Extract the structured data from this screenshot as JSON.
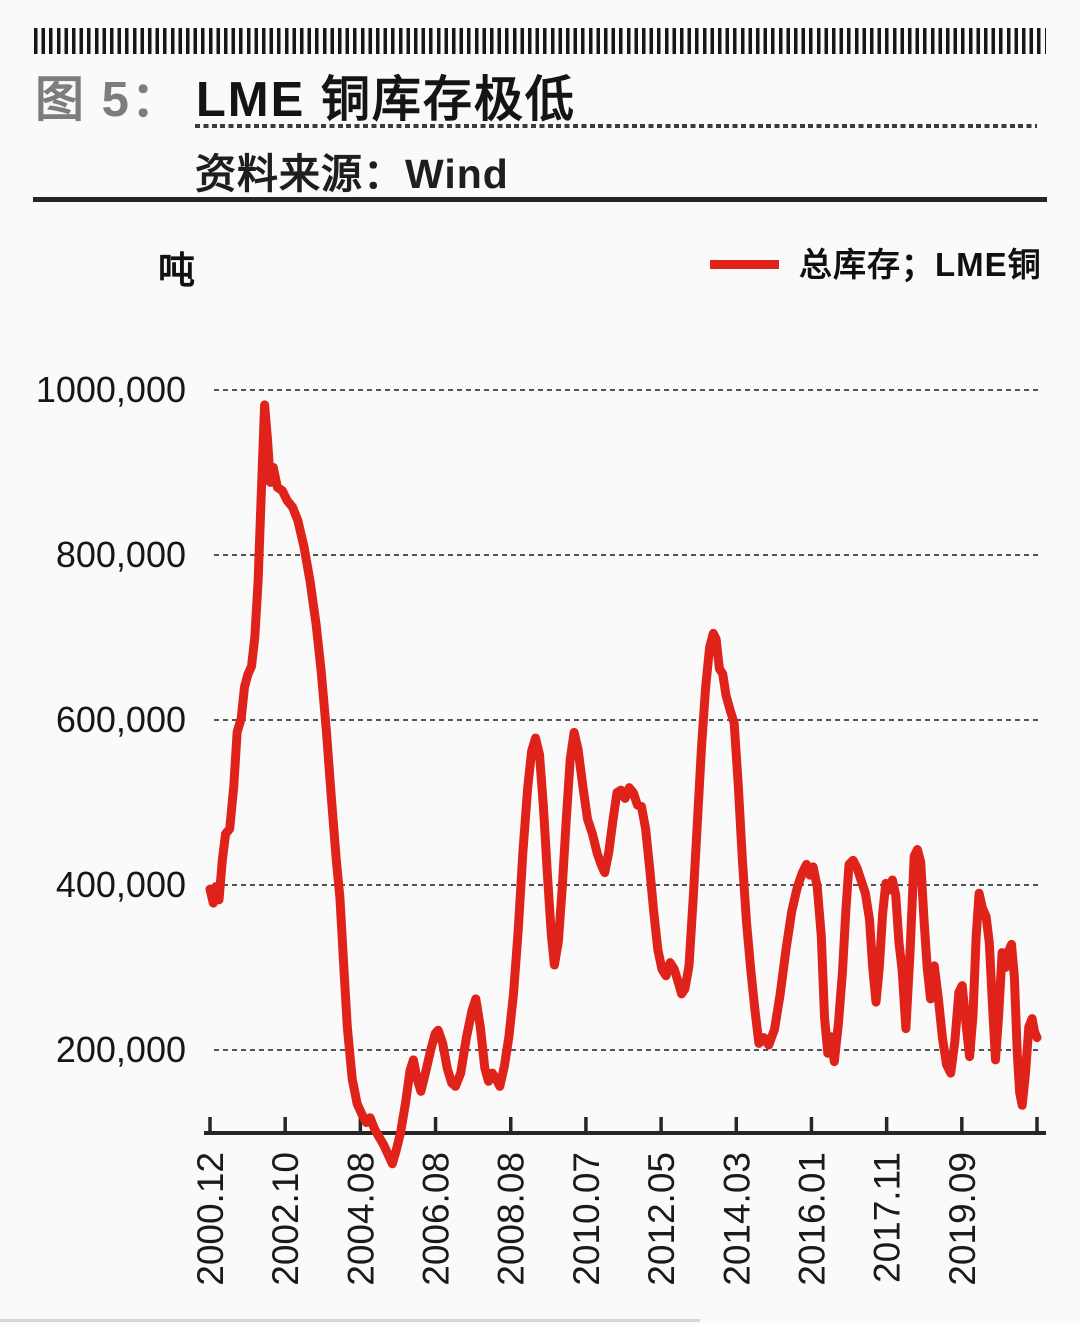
{
  "page": {
    "background": "#fafafa"
  },
  "header": {
    "figure_label": "图 5：",
    "title": "LME 铜库存极低",
    "source_label": "资料来源：Wind"
  },
  "chart": {
    "unit_label": "吨",
    "legend_color": "#e0231a",
    "line_color": "#e0231a",
    "axis_color": "#262626",
    "grid_color": "#555555",
    "text_color": "#1a1a1a"
  },
  "chart_data": {
    "type": "line",
    "title": "LME 铜库存极低",
    "xlabel": "",
    "ylabel": "吨",
    "grid": "horizontal-dashed",
    "legend_position": "top-right",
    "y_ticks": [
      {
        "label": "1000,000",
        "value": 1000000
      },
      {
        "label": "800,000",
        "value": 800000
      },
      {
        "label": "600,000",
        "value": 600000
      },
      {
        "label": "400,000",
        "value": 400000
      },
      {
        "label": "200,000",
        "value": 200000
      }
    ],
    "x_ticks": [
      {
        "label": "2000.12",
        "t": 2000.96
      },
      {
        "label": "2002.10",
        "t": 2002.79
      },
      {
        "label": "2004.08",
        "t": 2004.63
      },
      {
        "label": "2006.08",
        "t": 2006.63
      },
      {
        "label": "2008.08",
        "t": 2008.63
      },
      {
        "label": "2010.07",
        "t": 2010.54
      },
      {
        "label": "2012.05",
        "t": 2012.38
      },
      {
        "label": "2014.03",
        "t": 2014.21
      },
      {
        "label": "2016.01",
        "t": 2016.04
      },
      {
        "label": "2017.11",
        "t": 2017.88
      },
      {
        "label": "2019.09",
        "t": 2019.71
      }
    ],
    "axis_end_t": 2021.54,
    "ylim": [
      100000,
      1045000
    ],
    "series": [
      {
        "name": "总库存；LME铜",
        "color": "#e0231a",
        "points": [
          [
            2000.96,
            395000
          ],
          [
            2001.04,
            378000
          ],
          [
            2001.1,
            398000
          ],
          [
            2001.18,
            382000
          ],
          [
            2001.26,
            430000
          ],
          [
            2001.34,
            462000
          ],
          [
            2001.44,
            468000
          ],
          [
            2001.54,
            520000
          ],
          [
            2001.62,
            585000
          ],
          [
            2001.72,
            602000
          ],
          [
            2001.8,
            640000
          ],
          [
            2001.88,
            655000
          ],
          [
            2001.97,
            665000
          ],
          [
            2002.05,
            700000
          ],
          [
            2002.13,
            768000
          ],
          [
            2002.21,
            878000
          ],
          [
            2002.29,
            982000
          ],
          [
            2002.36,
            940000
          ],
          [
            2002.43,
            888000
          ],
          [
            2002.5,
            906000
          ],
          [
            2002.6,
            882000
          ],
          [
            2002.72,
            878000
          ],
          [
            2002.84,
            866000
          ],
          [
            2002.97,
            858000
          ],
          [
            2003.1,
            842000
          ],
          [
            2003.25,
            810000
          ],
          [
            2003.4,
            768000
          ],
          [
            2003.55,
            715000
          ],
          [
            2003.67,
            660000
          ],
          [
            2003.8,
            585000
          ],
          [
            2003.92,
            505000
          ],
          [
            2004.04,
            430000
          ],
          [
            2004.13,
            385000
          ],
          [
            2004.22,
            305000
          ],
          [
            2004.31,
            228000
          ],
          [
            2004.43,
            165000
          ],
          [
            2004.55,
            135000
          ],
          [
            2004.67,
            122000
          ],
          [
            2004.79,
            112000
          ],
          [
            2004.89,
            118000
          ],
          [
            2005.0,
            105000
          ],
          [
            2005.12,
            95000
          ],
          [
            2005.25,
            85000
          ],
          [
            2005.38,
            72000
          ],
          [
            2005.48,
            62000
          ],
          [
            2005.58,
            78000
          ],
          [
            2005.7,
            100000
          ],
          [
            2005.84,
            138000
          ],
          [
            2005.95,
            175000
          ],
          [
            2006.04,
            188000
          ],
          [
            2006.14,
            165000
          ],
          [
            2006.24,
            150000
          ],
          [
            2006.36,
            172000
          ],
          [
            2006.5,
            200000
          ],
          [
            2006.62,
            220000
          ],
          [
            2006.7,
            224000
          ],
          [
            2006.82,
            208000
          ],
          [
            2006.94,
            178000
          ],
          [
            2007.06,
            160000
          ],
          [
            2007.16,
            156000
          ],
          [
            2007.3,
            172000
          ],
          [
            2007.45,
            215000
          ],
          [
            2007.6,
            248000
          ],
          [
            2007.7,
            262000
          ],
          [
            2007.82,
            228000
          ],
          [
            2007.94,
            178000
          ],
          [
            2008.04,
            162000
          ],
          [
            2008.14,
            172000
          ],
          [
            2008.24,
            165000
          ],
          [
            2008.34,
            156000
          ],
          [
            2008.46,
            180000
          ],
          [
            2008.58,
            215000
          ],
          [
            2008.7,
            268000
          ],
          [
            2008.82,
            345000
          ],
          [
            2008.94,
            440000
          ],
          [
            2009.06,
            518000
          ],
          [
            2009.16,
            562000
          ],
          [
            2009.26,
            578000
          ],
          [
            2009.36,
            558000
          ],
          [
            2009.46,
            495000
          ],
          [
            2009.56,
            415000
          ],
          [
            2009.66,
            340000
          ],
          [
            2009.74,
            303000
          ],
          [
            2009.84,
            332000
          ],
          [
            2009.94,
            398000
          ],
          [
            2010.04,
            478000
          ],
          [
            2010.14,
            552000
          ],
          [
            2010.24,
            585000
          ],
          [
            2010.34,
            565000
          ],
          [
            2010.46,
            520000
          ],
          [
            2010.58,
            480000
          ],
          [
            2010.7,
            462000
          ],
          [
            2010.82,
            438000
          ],
          [
            2010.92,
            424000
          ],
          [
            2011.0,
            415000
          ],
          [
            2011.1,
            440000
          ],
          [
            2011.2,
            478000
          ],
          [
            2011.3,
            512000
          ],
          [
            2011.4,
            515000
          ],
          [
            2011.5,
            505000
          ],
          [
            2011.6,
            518000
          ],
          [
            2011.7,
            512000
          ],
          [
            2011.8,
            497000
          ],
          [
            2011.9,
            495000
          ],
          [
            2012.0,
            468000
          ],
          [
            2012.1,
            420000
          ],
          [
            2012.2,
            368000
          ],
          [
            2012.3,
            322000
          ],
          [
            2012.4,
            298000
          ],
          [
            2012.5,
            290000
          ],
          [
            2012.6,
            306000
          ],
          [
            2012.7,
            298000
          ],
          [
            2012.8,
            282000
          ],
          [
            2012.88,
            268000
          ],
          [
            2012.96,
            274000
          ],
          [
            2013.06,
            302000
          ],
          [
            2013.16,
            382000
          ],
          [
            2013.26,
            472000
          ],
          [
            2013.36,
            565000
          ],
          [
            2013.46,
            638000
          ],
          [
            2013.56,
            688000
          ],
          [
            2013.65,
            705000
          ],
          [
            2013.72,
            698000
          ],
          [
            2013.8,
            662000
          ],
          [
            2013.88,
            656000
          ],
          [
            2013.96,
            630000
          ],
          [
            2014.06,
            612000
          ],
          [
            2014.16,
            596000
          ],
          [
            2014.26,
            520000
          ],
          [
            2014.36,
            430000
          ],
          [
            2014.46,
            355000
          ],
          [
            2014.56,
            298000
          ],
          [
            2014.66,
            250000
          ],
          [
            2014.76,
            208000
          ],
          [
            2014.88,
            215000
          ],
          [
            2015.0,
            206000
          ],
          [
            2015.14,
            225000
          ],
          [
            2015.28,
            268000
          ],
          [
            2015.42,
            322000
          ],
          [
            2015.56,
            368000
          ],
          [
            2015.7,
            398000
          ],
          [
            2015.82,
            415000
          ],
          [
            2015.92,
            425000
          ],
          [
            2016.0,
            412000
          ],
          [
            2016.08,
            422000
          ],
          [
            2016.18,
            398000
          ],
          [
            2016.28,
            338000
          ],
          [
            2016.36,
            240000
          ],
          [
            2016.44,
            196000
          ],
          [
            2016.52,
            216000
          ],
          [
            2016.6,
            186000
          ],
          [
            2016.7,
            232000
          ],
          [
            2016.8,
            295000
          ],
          [
            2016.88,
            368000
          ],
          [
            2016.96,
            425000
          ],
          [
            2017.06,
            430000
          ],
          [
            2017.16,
            420000
          ],
          [
            2017.26,
            405000
          ],
          [
            2017.36,
            390000
          ],
          [
            2017.46,
            358000
          ],
          [
            2017.54,
            300000
          ],
          [
            2017.62,
            258000
          ],
          [
            2017.7,
            300000
          ],
          [
            2017.78,
            365000
          ],
          [
            2017.86,
            402000
          ],
          [
            2017.94,
            394000
          ],
          [
            2018.02,
            406000
          ],
          [
            2018.1,
            388000
          ],
          [
            2018.18,
            330000
          ],
          [
            2018.26,
            296000
          ],
          [
            2018.35,
            226000
          ],
          [
            2018.45,
            320000
          ],
          [
            2018.55,
            435000
          ],
          [
            2018.63,
            443000
          ],
          [
            2018.71,
            428000
          ],
          [
            2018.79,
            358000
          ],
          [
            2018.87,
            298000
          ],
          [
            2018.95,
            262000
          ],
          [
            2019.04,
            302000
          ],
          [
            2019.14,
            262000
          ],
          [
            2019.24,
            214000
          ],
          [
            2019.34,
            182000
          ],
          [
            2019.44,
            172000
          ],
          [
            2019.54,
            210000
          ],
          [
            2019.64,
            270000
          ],
          [
            2019.72,
            278000
          ],
          [
            2019.82,
            228000
          ],
          [
            2019.9,
            192000
          ],
          [
            2019.98,
            240000
          ],
          [
            2020.06,
            338000
          ],
          [
            2020.13,
            390000
          ],
          [
            2020.21,
            372000
          ],
          [
            2020.3,
            362000
          ],
          [
            2020.38,
            330000
          ],
          [
            2020.46,
            252000
          ],
          [
            2020.53,
            188000
          ],
          [
            2020.61,
            245000
          ],
          [
            2020.69,
            318000
          ],
          [
            2020.77,
            300000
          ],
          [
            2020.85,
            320000
          ],
          [
            2020.92,
            328000
          ],
          [
            2020.99,
            288000
          ],
          [
            2021.06,
            195000
          ],
          [
            2021.12,
            148000
          ],
          [
            2021.18,
            133000
          ],
          [
            2021.26,
            172000
          ],
          [
            2021.34,
            228000
          ],
          [
            2021.42,
            238000
          ],
          [
            2021.48,
            222000
          ],
          [
            2021.54,
            215000
          ]
        ]
      }
    ]
  }
}
